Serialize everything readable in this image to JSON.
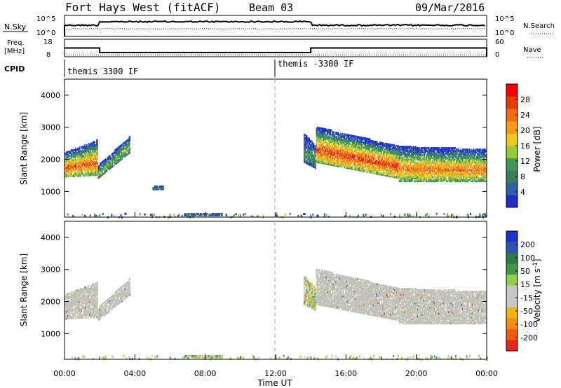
{
  "header": {
    "station": "Fort Hays West (fitACF)",
    "beam": "Beam 03",
    "date": "09/Mar/2016"
  },
  "strip_panels": {
    "nsky": {
      "label": "N.Sky",
      "ticks": [
        "10^5",
        "10^0"
      ],
      "right_ticks": [
        "10^5",
        "10^0"
      ],
      "right_label": "N.Search"
    },
    "freq": {
      "label_lines": [
        "Freq.",
        "[MHz]"
      ],
      "ticks": [
        "18",
        "8"
      ],
      "right_ticks": [
        "60",
        "0"
      ],
      "right_label": "Nave",
      "freq_levels": [
        {
          "x": [
            0,
            2
          ],
          "y": 13.0
        },
        {
          "x": [
            2,
            14
          ],
          "y": 10.4
        },
        {
          "x": [
            14,
            24
          ],
          "y": 13.0
        }
      ],
      "nave_level": 6
    },
    "cpid": {
      "label": "CPID",
      "programs": [
        {
          "label": "themis 3300 IF",
          "start": 0
        },
        {
          "label": "themis -3300 IF",
          "start": 12
        }
      ]
    }
  },
  "colors": {
    "power_scale": [
      "#1e2dc8",
      "#2e5fa8",
      "#3a7d5a",
      "#3f9a55",
      "#9bc83c",
      "#f0c81e",
      "#f59b14",
      "#f06e0f",
      "#e63c0a",
      "#ff0000"
    ],
    "velocity_scale": [
      "#1e32c8",
      "#2f52b4",
      "#2e7a4a",
      "#3f9a40",
      "#8fd24a",
      "#c8c8c8",
      "#c8c8c8",
      "#f0b418",
      "#f58c14",
      "#f05a0f",
      "#e62814"
    ],
    "ground_scatter": "#c0c0b8"
  },
  "chart_data": [
    {
      "type": "heatmap",
      "name": "power",
      "xlabel": "",
      "ylabel": "Slant Range [km]",
      "xlim": [
        0,
        24
      ],
      "ylim": [
        200,
        4500
      ],
      "yticks": [
        1000,
        2000,
        3000,
        4000
      ],
      "colorbar": {
        "label": "Power [dB]",
        "ticks": [
          4,
          8,
          12,
          16,
          20,
          24,
          28
        ],
        "range": [
          0,
          32
        ]
      },
      "regions": [
        {
          "t": [
            0.0,
            1.9
          ],
          "r_low": [
            1450,
            1500
          ],
          "r_high": [
            2200,
            2600
          ],
          "peak": 26
        },
        {
          "t": [
            1.9,
            3.7
          ],
          "r_low": [
            1400,
            2200
          ],
          "r_high": [
            1800,
            2700
          ],
          "peak": 14
        },
        {
          "t": [
            5.0,
            5.6
          ],
          "r_low": [
            1050,
            1050
          ],
          "r_high": [
            1150,
            1150
          ],
          "peak": 6
        },
        {
          "t": [
            6.8,
            9.0
          ],
          "r_low": [
            240,
            240
          ],
          "r_high": [
            330,
            330
          ],
          "peak": 6
        },
        {
          "t": [
            13.6,
            14.3
          ],
          "r_low": [
            1900,
            1700
          ],
          "r_high": [
            2800,
            2400
          ],
          "peak": 10
        },
        {
          "t": [
            14.3,
            19.0
          ],
          "r_low": [
            1900,
            1400
          ],
          "r_high": [
            3000,
            2400
          ],
          "peak": 28
        },
        {
          "t": [
            19.0,
            24.0
          ],
          "r_low": [
            1300,
            1300
          ],
          "r_high": [
            2400,
            2300
          ],
          "peak": 24
        }
      ]
    },
    {
      "type": "heatmap",
      "name": "velocity",
      "xlabel": "Time UT",
      "ylabel": "Slant Range [km]",
      "xlim": [
        0,
        24
      ],
      "ylim": [
        200,
        4500
      ],
      "xticks": [
        "00:00",
        "04:00",
        "08:00",
        "12:00",
        "16:00",
        "20:00",
        "00:00"
      ],
      "yticks": [
        1000,
        2000,
        3000,
        4000
      ],
      "colorbar": {
        "label": "Velocity [m s^-1]",
        "ticks": [
          200,
          100,
          50,
          15,
          -15,
          -50,
          -100,
          -200
        ]
      },
      "regions": [
        {
          "t": [
            0.0,
            1.9
          ],
          "r_low": [
            1450,
            1500
          ],
          "r_high": [
            2200,
            2600
          ],
          "kind": "ground"
        },
        {
          "t": [
            1.9,
            3.7
          ],
          "r_low": [
            1400,
            2200
          ],
          "r_high": [
            1800,
            2700
          ],
          "kind": "ground"
        },
        {
          "t": [
            6.8,
            9.0
          ],
          "r_low": [
            240,
            240
          ],
          "r_high": [
            330,
            330
          ],
          "kind": "ionos"
        },
        {
          "t": [
            13.6,
            14.3
          ],
          "r_low": [
            1900,
            1700
          ],
          "r_high": [
            2800,
            2400
          ],
          "kind": "ionos"
        },
        {
          "t": [
            14.3,
            19.0
          ],
          "r_low": [
            1900,
            1400
          ],
          "r_high": [
            3000,
            2400
          ],
          "kind": "ground"
        },
        {
          "t": [
            19.0,
            24.0
          ],
          "r_low": [
            1300,
            1300
          ],
          "r_high": [
            2400,
            2300
          ],
          "kind": "ground"
        }
      ]
    }
  ]
}
